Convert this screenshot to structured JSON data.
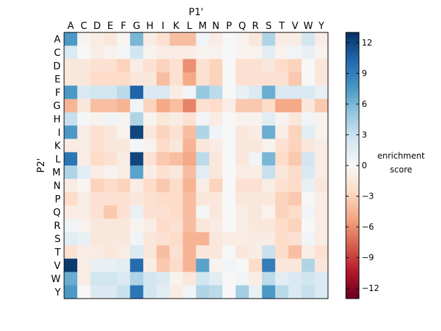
{
  "chart_data": {
    "type": "heatmap",
    "xlabel": "P1'",
    "ylabel": "P2'",
    "x_categories": [
      "A",
      "C",
      "D",
      "E",
      "F",
      "G",
      "H",
      "I",
      "K",
      "L",
      "M",
      "N",
      "P",
      "Q",
      "R",
      "S",
      "T",
      "V",
      "W",
      "Y"
    ],
    "y_categories": [
      "A",
      "C",
      "D",
      "E",
      "F",
      "G",
      "H",
      "I",
      "K",
      "L",
      "M",
      "N",
      "P",
      "Q",
      "R",
      "S",
      "T",
      "V",
      "W",
      "Y"
    ],
    "values": [
      [
        7.5,
        -0.5,
        -1.0,
        -1.5,
        -0.3,
        6.0,
        -1.0,
        -2.0,
        -4.0,
        -4.0,
        0.5,
        -1.0,
        0.0,
        -0.5,
        -1.5,
        4.0,
        -1.0,
        -1.0,
        2.5,
        -1.0
      ],
      [
        2.0,
        0.0,
        -1.0,
        -0.5,
        0.3,
        2.5,
        -0.5,
        -1.0,
        -1.0,
        -1.0,
        -0.5,
        -0.5,
        0.0,
        -0.5,
        -0.5,
        1.5,
        -0.5,
        0.5,
        1.0,
        -0.5
      ],
      [
        -1.5,
        -1.5,
        -2.0,
        -2.0,
        -3.0,
        -1.0,
        -2.0,
        -3.0,
        -2.0,
        -6.0,
        -2.0,
        -3.0,
        0.0,
        -2.0,
        -2.0,
        -1.5,
        -2.5,
        -3.0,
        0.0,
        -1.5
      ],
      [
        -1.5,
        -1.5,
        -2.5,
        -2.5,
        -2.5,
        -1.5,
        -1.5,
        -4.0,
        -2.0,
        -5.0,
        -2.0,
        -3.0,
        0.0,
        -2.0,
        -2.0,
        -2.0,
        -2.0,
        -3.5,
        0.0,
        -1.5
      ],
      [
        7.5,
        2.0,
        2.5,
        2.5,
        3.5,
        10.5,
        2.0,
        2.0,
        -1.0,
        0.5,
        5.0,
        3.5,
        0.0,
        1.0,
        2.0,
        6.5,
        2.0,
        2.0,
        2.0,
        1.0
      ],
      [
        -4.5,
        -1.5,
        -4.0,
        -4.0,
        -4.5,
        0.5,
        -3.0,
        -5.0,
        -4.0,
        -6.5,
        -2.0,
        -2.5,
        -1.0,
        -3.5,
        -3.5,
        -2.5,
        -5.0,
        -5.0,
        -1.5,
        -3.5
      ],
      [
        3.0,
        0.3,
        -0.5,
        0.5,
        -0.5,
        4.0,
        -0.5,
        -1.5,
        -1.0,
        -2.0,
        0.5,
        -1.0,
        0.0,
        -0.5,
        -0.5,
        1.5,
        -0.5,
        -1.5,
        0.5,
        -0.5
      ],
      [
        7.5,
        -1.0,
        -2.0,
        -1.5,
        -0.5,
        12.0,
        -1.5,
        -3.0,
        -2.0,
        -4.0,
        4.0,
        0.5,
        0.0,
        -1.5,
        -1.0,
        6.5,
        -1.0,
        -3.0,
        1.5,
        -0.5
      ],
      [
        -1.0,
        -1.0,
        -2.0,
        -1.5,
        -1.5,
        0.3,
        -0.5,
        -2.5,
        -1.5,
        -4.5,
        -1.5,
        -1.0,
        0.0,
        -1.5,
        -1.5,
        -0.5,
        -2.0,
        -3.0,
        -1.5,
        -1.0
      ],
      [
        9.5,
        -1.0,
        -2.5,
        -2.0,
        -1.0,
        12.0,
        -2.0,
        -3.5,
        -4.0,
        -5.0,
        3.5,
        -1.5,
        0.0,
        -1.5,
        0.5,
        6.0,
        -2.5,
        -3.5,
        2.5,
        -1.0
      ],
      [
        4.0,
        1.5,
        -1.0,
        -0.5,
        -1.0,
        7.0,
        -1.0,
        -2.0,
        -1.5,
        -4.0,
        1.5,
        -1.5,
        0.0,
        -1.0,
        -1.0,
        3.0,
        -1.5,
        -2.5,
        2.0,
        -1.0
      ],
      [
        -1.0,
        -0.3,
        -3.0,
        -2.5,
        -3.0,
        -1.0,
        -2.5,
        -3.5,
        -2.5,
        -4.5,
        -1.0,
        -3.0,
        0.0,
        -2.0,
        -2.0,
        -1.0,
        -2.0,
        -2.5,
        1.0,
        -1.5
      ],
      [
        -2.5,
        -1.0,
        -2.0,
        -2.0,
        -2.0,
        -1.5,
        -2.0,
        -2.5,
        -2.5,
        -4.0,
        -1.5,
        -1.5,
        0.0,
        -1.5,
        -1.5,
        -1.5,
        -3.0,
        -3.5,
        0.0,
        -1.0
      ],
      [
        -1.0,
        -1.0,
        -2.0,
        -3.5,
        -2.0,
        1.0,
        -2.0,
        -2.0,
        -2.5,
        -4.0,
        0.3,
        -1.5,
        0.0,
        -1.0,
        -1.5,
        -0.5,
        -3.0,
        -2.5,
        0.5,
        -1.0
      ],
      [
        0.5,
        -0.5,
        -1.5,
        -1.5,
        -1.5,
        -0.5,
        -1.0,
        -2.5,
        -2.0,
        -4.0,
        -1.5,
        -1.0,
        0.0,
        -1.0,
        -1.5,
        -1.5,
        -2.5,
        -3.0,
        0.0,
        -1.0
      ],
      [
        1.5,
        1.0,
        -1.5,
        -1.5,
        -1.5,
        0.5,
        -1.5,
        -2.0,
        -2.5,
        -4.5,
        -4.5,
        -1.5,
        -1.0,
        -1.0,
        -1.0,
        -1.0,
        -2.5,
        -2.0,
        0.5,
        -1.0
      ],
      [
        -2.0,
        -1.0,
        -1.0,
        -1.5,
        -1.0,
        2.0,
        -1.5,
        -4.0,
        -2.0,
        -4.5,
        -1.5,
        -1.5,
        0.0,
        -1.5,
        -1.0,
        3.0,
        -2.5,
        -4.0,
        -1.0,
        -2.0
      ],
      [
        12.5,
        -1.0,
        1.0,
        1.0,
        1.5,
        10.0,
        -1.0,
        -3.5,
        -2.5,
        -4.5,
        7.0,
        -0.5,
        0.5,
        0.0,
        -2.5,
        9.0,
        -1.5,
        -1.5,
        4.0,
        -1.5
      ],
      [
        6.5,
        -1.0,
        2.5,
        2.5,
        2.0,
        4.0,
        2.5,
        2.0,
        -0.5,
        -1.5,
        2.5,
        1.5,
        0.0,
        0.5,
        -1.0,
        3.5,
        1.5,
        2.0,
        2.5,
        2.0
      ],
      [
        7.5,
        0.0,
        2.0,
        2.0,
        3.0,
        9.5,
        2.5,
        1.5,
        -1.0,
        0.5,
        4.0,
        3.5,
        0.0,
        4.5,
        1.0,
        7.5,
        3.5,
        2.0,
        3.0,
        2.0
      ]
    ],
    "colorbar": {
      "label_line1": "enrichment",
      "label_line2": "score",
      "min": -13,
      "max": 13,
      "ticks": [
        12,
        9,
        6,
        3,
        0,
        -3,
        -6,
        -9,
        -12
      ],
      "colormap": "RdBu"
    }
  }
}
